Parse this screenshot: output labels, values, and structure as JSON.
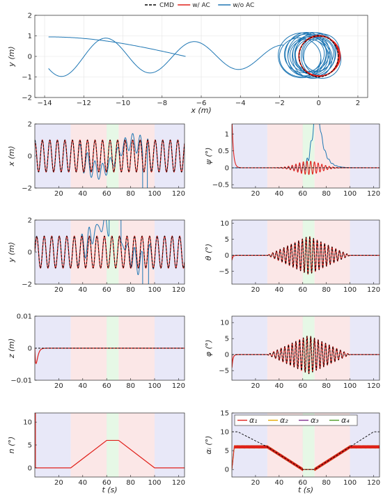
{
  "legend": {
    "items": [
      {
        "label": "CMD",
        "color": "#000000",
        "dash": true
      },
      {
        "label": "w/ AC",
        "color": "#e0201a",
        "dash": false
      },
      {
        "label": "w/o AC",
        "color": "#1f77b4",
        "dash": false
      }
    ]
  },
  "phase_colors": {
    "blue": "#e8e8f8",
    "red": "#fbe7e7",
    "green": "#e6f8e6"
  },
  "phases": [
    {
      "start": 0,
      "end": 30,
      "color": "blue"
    },
    {
      "start": 30,
      "end": 60,
      "color": "red"
    },
    {
      "start": 60,
      "end": 70,
      "color": "green"
    },
    {
      "start": 70,
      "end": 100,
      "color": "red"
    },
    {
      "start": 100,
      "end": 125,
      "color": "blue"
    }
  ],
  "chart_data": [
    {
      "id": "xy",
      "type": "line",
      "xlabel": "x (m)",
      "ylabel": "y (m)",
      "xlim": [
        -14.5,
        2.5
      ],
      "ylim": [
        -2,
        2
      ],
      "xticks": [
        -14,
        -12,
        -10,
        -8,
        -6,
        -4,
        -2,
        0,
        2
      ],
      "xtick_labels": [
        "−14",
        "−12",
        "−10",
        "−8",
        "−6",
        "−4",
        "−2",
        "0",
        "2"
      ],
      "yticks": [
        -2,
        -1,
        0,
        1,
        2
      ],
      "ytick_labels": [
        "−2",
        "−1",
        "0",
        "1",
        "2"
      ],
      "grid": true,
      "series": [
        {
          "name": "CMD",
          "description": "circle radius 1 centred at origin"
        },
        {
          "name": "w/ AC",
          "description": "circle radius ~1 centred near origin"
        },
        {
          "name": "w/o AC",
          "description": "spirals near origin then drifts in sinusoid to x ≈ −13.8"
        }
      ]
    },
    {
      "id": "x_t",
      "type": "line",
      "xlabel": "",
      "ylabel": "x (m)",
      "xlim": [
        0,
        125
      ],
      "ylim": [
        -2,
        2
      ],
      "xticks": [
        20,
        40,
        60,
        80,
        100,
        120
      ],
      "xtick_labels": [
        "20",
        "40",
        "60",
        "80",
        "100",
        "120"
      ],
      "yticks": [
        -2,
        0,
        2
      ],
      "ytick_labels": [
        "−2",
        "0",
        "2"
      ],
      "series": [
        {
          "name": "CMD",
          "amplitude": 1,
          "period_s": 6.28
        },
        {
          "name": "w/ AC",
          "amplitude": 1,
          "period_s": 6.28
        },
        {
          "name": "w/o AC",
          "description": "follows until ~35 s, deviates, diverges near 92 s, returns after ~100 s"
        }
      ]
    },
    {
      "id": "psi_t",
      "type": "line",
      "xlabel": "",
      "ylabel": "ψ (°)",
      "xlim": [
        0,
        125
      ],
      "ylim": [
        -0.6,
        1.3
      ],
      "xticks": [
        20,
        40,
        60,
        80,
        100,
        120
      ],
      "xtick_labels": [
        "20",
        "40",
        "60",
        "80",
        "100",
        "120"
      ],
      "yticks": [
        -0.5,
        0,
        0.5,
        1
      ],
      "ytick_labels": [
        "−0.5",
        "0",
        "0.5",
        "1"
      ],
      "series": [
        {
          "name": "CMD",
          "value": 0
        },
        {
          "name": "w/ AC",
          "description": "initial spike ~1.3 decaying, small oscillation peak ~0.2 near 65 s"
        },
        {
          "name": "w/o AC",
          "description": "rises near 62 s to >1.3 at ~70 s, decays back to ~0 by 85 s"
        }
      ]
    },
    {
      "id": "y_t",
      "type": "line",
      "xlabel": "",
      "ylabel": "y (m)",
      "xlim": [
        0,
        125
      ],
      "ylim": [
        -2,
        2
      ],
      "xticks": [
        20,
        40,
        60,
        80,
        100,
        120
      ],
      "xtick_labels": [
        "20",
        "40",
        "60",
        "80",
        "100",
        "120"
      ],
      "yticks": [
        -2,
        0,
        2
      ],
      "ytick_labels": [
        "−2",
        "0",
        "2"
      ],
      "series": [
        {
          "name": "CMD",
          "amplitude": 1,
          "period_s": 6.28
        },
        {
          "name": "w/ AC",
          "amplitude": 1,
          "period_s": 6.28
        },
        {
          "name": "w/o AC",
          "description": "deviates after ~35 s, exceeds 2 near 65 s, returns after ~100 s"
        }
      ]
    },
    {
      "id": "theta_t",
      "type": "line",
      "xlabel": "",
      "ylabel": "θ (°)",
      "xlim": [
        0,
        125
      ],
      "ylim": [
        -9,
        11
      ],
      "xticks": [
        20,
        40,
        60,
        80,
        100,
        120
      ],
      "xtick_labels": [
        "20",
        "40",
        "60",
        "80",
        "100",
        "120"
      ],
      "yticks": [
        -5,
        0,
        5,
        10
      ],
      "ytick_labels": [
        "−5",
        "0",
        "5",
        "10"
      ],
      "series": [
        {
          "name": "CMD",
          "description": "oscillation with envelope peaking ~6 at 65 s between 30 and 100 s"
        },
        {
          "name": "w/ AC",
          "description": "tracks CMD; initial transient to ~−1.5"
        }
      ]
    },
    {
      "id": "z_t",
      "type": "line",
      "xlabel": "",
      "ylabel": "z (m)",
      "xlim": [
        0,
        125
      ],
      "ylim": [
        -0.01,
        0.01
      ],
      "xticks": [
        20,
        40,
        60,
        80,
        100,
        120
      ],
      "xtick_labels": [
        "20",
        "40",
        "60",
        "80",
        "100",
        "120"
      ],
      "yticks": [
        -0.01,
        0,
        0.01
      ],
      "ytick_labels": [
        "−0.01",
        "0",
        "0.01"
      ],
      "series": [
        {
          "name": "CMD",
          "value": 0
        },
        {
          "name": "w/ AC",
          "description": "dips to ~−0.0045 at start then settles to 0"
        }
      ]
    },
    {
      "id": "phi_t",
      "type": "line",
      "xlabel": "",
      "ylabel": "φ (°)",
      "xlim": [
        0,
        125
      ],
      "ylim": [
        -8,
        12
      ],
      "xticks": [
        20,
        40,
        60,
        80,
        100,
        120
      ],
      "xtick_labels": [
        "20",
        "40",
        "60",
        "80",
        "100",
        "120"
      ],
      "yticks": [
        -5,
        0,
        5,
        10
      ],
      "ytick_labels": [
        "−5",
        "0",
        "5",
        "10"
      ],
      "series": [
        {
          "name": "CMD",
          "description": "oscillation with envelope peaking ~6 at 65 s between 30 and 100 s"
        },
        {
          "name": "w/ AC",
          "description": "tracks CMD; initial transient to ~−4.5"
        }
      ]
    },
    {
      "id": "n_t",
      "type": "line",
      "xlabel": "t (s)",
      "ylabel": "n (°)",
      "xlim": [
        0,
        125
      ],
      "ylim": [
        -2,
        12
      ],
      "xticks": [
        20,
        40,
        60,
        80,
        100,
        120
      ],
      "xtick_labels": [
        "20",
        "40",
        "60",
        "80",
        "100",
        "120"
      ],
      "yticks": [
        0,
        5,
        10
      ],
      "ytick_labels": [
        "0",
        "5",
        "10"
      ],
      "series": [
        {
          "name": "w/ AC",
          "x": [
            0,
            0.5,
            0.5,
            30,
            60,
            70,
            100,
            125
          ],
          "y": [
            12,
            12,
            0,
            0,
            6,
            6,
            0,
            0
          ]
        }
      ]
    },
    {
      "id": "alpha_t",
      "type": "line",
      "xlabel": "t (s)",
      "ylabel": "αᵢ (°)",
      "xlim": [
        0,
        125
      ],
      "ylim": [
        -2,
        15
      ],
      "xticks": [
        20,
        40,
        60,
        80,
        100,
        120
      ],
      "xtick_labels": [
        "20",
        "40",
        "60",
        "80",
        "100",
        "120"
      ],
      "yticks": [
        0,
        5,
        10,
        15
      ],
      "ytick_labels": [
        "0",
        "5",
        "10",
        "15"
      ],
      "legend": {
        "placement": "top-left",
        "entries": [
          "α₁",
          "α₂",
          "α₃",
          "α₄"
        ],
        "colors": [
          "#e0201a",
          "#e6a800",
          "#7e2f8e",
          "#4d9b24"
        ]
      },
      "series": [
        {
          "name": "",
          "description": "black dashed: 10 until ~5 s, drops to ~6 at 30 s, linear to 0 at 60–70 s, back to 6 at 100 s, rises to 10 at 125 s",
          "x": [
            0,
            5,
            30,
            60,
            70,
            100,
            120,
            125
          ],
          "y": [
            10,
            10,
            6,
            0,
            0,
            6,
            10,
            10
          ]
        },
        {
          "name": "α₁",
          "x": [
            0,
            2,
            30,
            60,
            70,
            100,
            125
          ],
          "y": [
            0,
            6,
            6,
            0,
            0,
            6,
            6
          ]
        },
        {
          "name": "α₂",
          "x": [
            0,
            2,
            30,
            60,
            70,
            100,
            125
          ],
          "y": [
            0,
            6,
            6,
            0,
            0,
            6,
            6
          ]
        },
        {
          "name": "α₃",
          "x": [
            0,
            2,
            30,
            60,
            70,
            100,
            125
          ],
          "y": [
            0,
            6,
            6,
            0,
            0,
            6,
            6
          ]
        },
        {
          "name": "α₄",
          "x": [
            0,
            2,
            30,
            60,
            70,
            100,
            125
          ],
          "y": [
            0,
            6,
            6,
            0,
            0,
            6,
            6
          ]
        }
      ]
    }
  ]
}
